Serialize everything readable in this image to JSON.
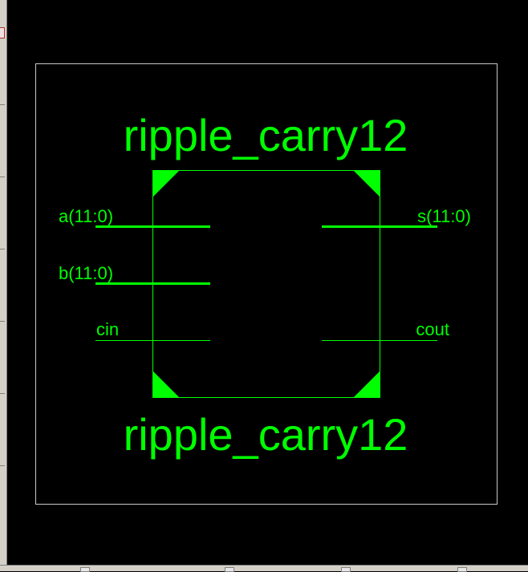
{
  "colors": {
    "accent": "#00ff00",
    "background": "#000000",
    "frame": "#c8c8c8"
  },
  "symbol": {
    "title_top": "ripple_carry12",
    "title_bottom": "ripple_carry12",
    "inputs": [
      {
        "label": "a(11:0)",
        "bus": true
      },
      {
        "label": "b(11:0)",
        "bus": true
      },
      {
        "label": "cin",
        "bus": false
      }
    ],
    "outputs": [
      {
        "label": "s(11:0)",
        "bus": true
      },
      {
        "label": "cout",
        "bus": false
      }
    ]
  }
}
